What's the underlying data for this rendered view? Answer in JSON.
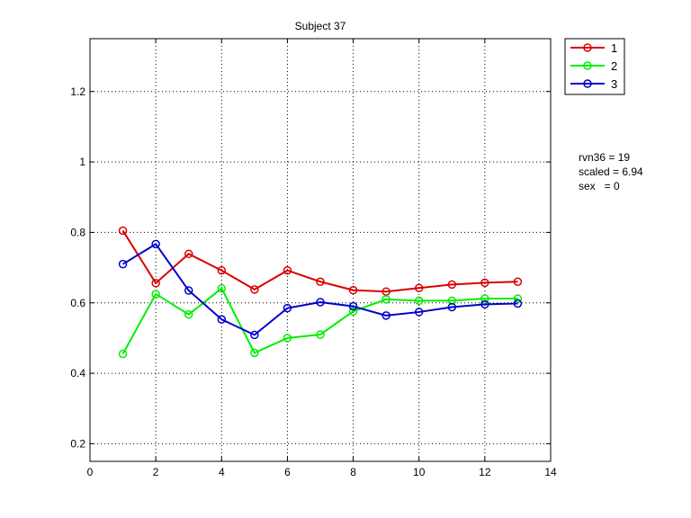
{
  "chart_data": {
    "type": "line",
    "title": "Subject 37",
    "xlabel": "",
    "ylabel": "",
    "xlim": [
      0,
      14
    ],
    "ylim": [
      0.15,
      1.35
    ],
    "xticks": [
      0,
      2,
      4,
      6,
      8,
      10,
      12,
      14
    ],
    "yticks": [
      0.2,
      0.4,
      0.6,
      0.8,
      1,
      1.2
    ],
    "xtick_labels": [
      "0",
      "2",
      "4",
      "6",
      "8",
      "10",
      "12",
      "14"
    ],
    "ytick_labels": [
      "0.2",
      "0.4",
      "0.6",
      "0.8",
      "1",
      "1.2"
    ],
    "grid": true,
    "legend_position": "outside-top-right",
    "x": [
      1,
      2,
      3,
      4,
      5,
      6,
      7,
      8,
      9,
      10,
      11,
      12,
      13
    ],
    "series": [
      {
        "name": "1",
        "color": "#dd0000",
        "marker": "circle",
        "values": [
          0.805,
          0.656,
          0.739,
          0.692,
          0.638,
          0.692,
          0.66,
          0.636,
          0.632,
          0.642,
          0.652,
          0.657,
          0.66
        ]
      },
      {
        "name": "2",
        "color": "#00ee00",
        "marker": "circle",
        "values": [
          0.455,
          0.625,
          0.567,
          0.641,
          0.458,
          0.5,
          0.51,
          0.576,
          0.61,
          0.606,
          0.606,
          0.612,
          0.612
        ]
      },
      {
        "name": "3",
        "color": "#0000cc",
        "marker": "circle",
        "values": [
          0.71,
          0.767,
          0.635,
          0.553,
          0.509,
          0.585,
          0.602,
          0.59,
          0.564,
          0.574,
          0.588,
          0.596,
          0.598
        ]
      }
    ]
  },
  "annotations": [
    "rvn36 = 19",
    "scaled = 6.94",
    "sex   = 0"
  ]
}
